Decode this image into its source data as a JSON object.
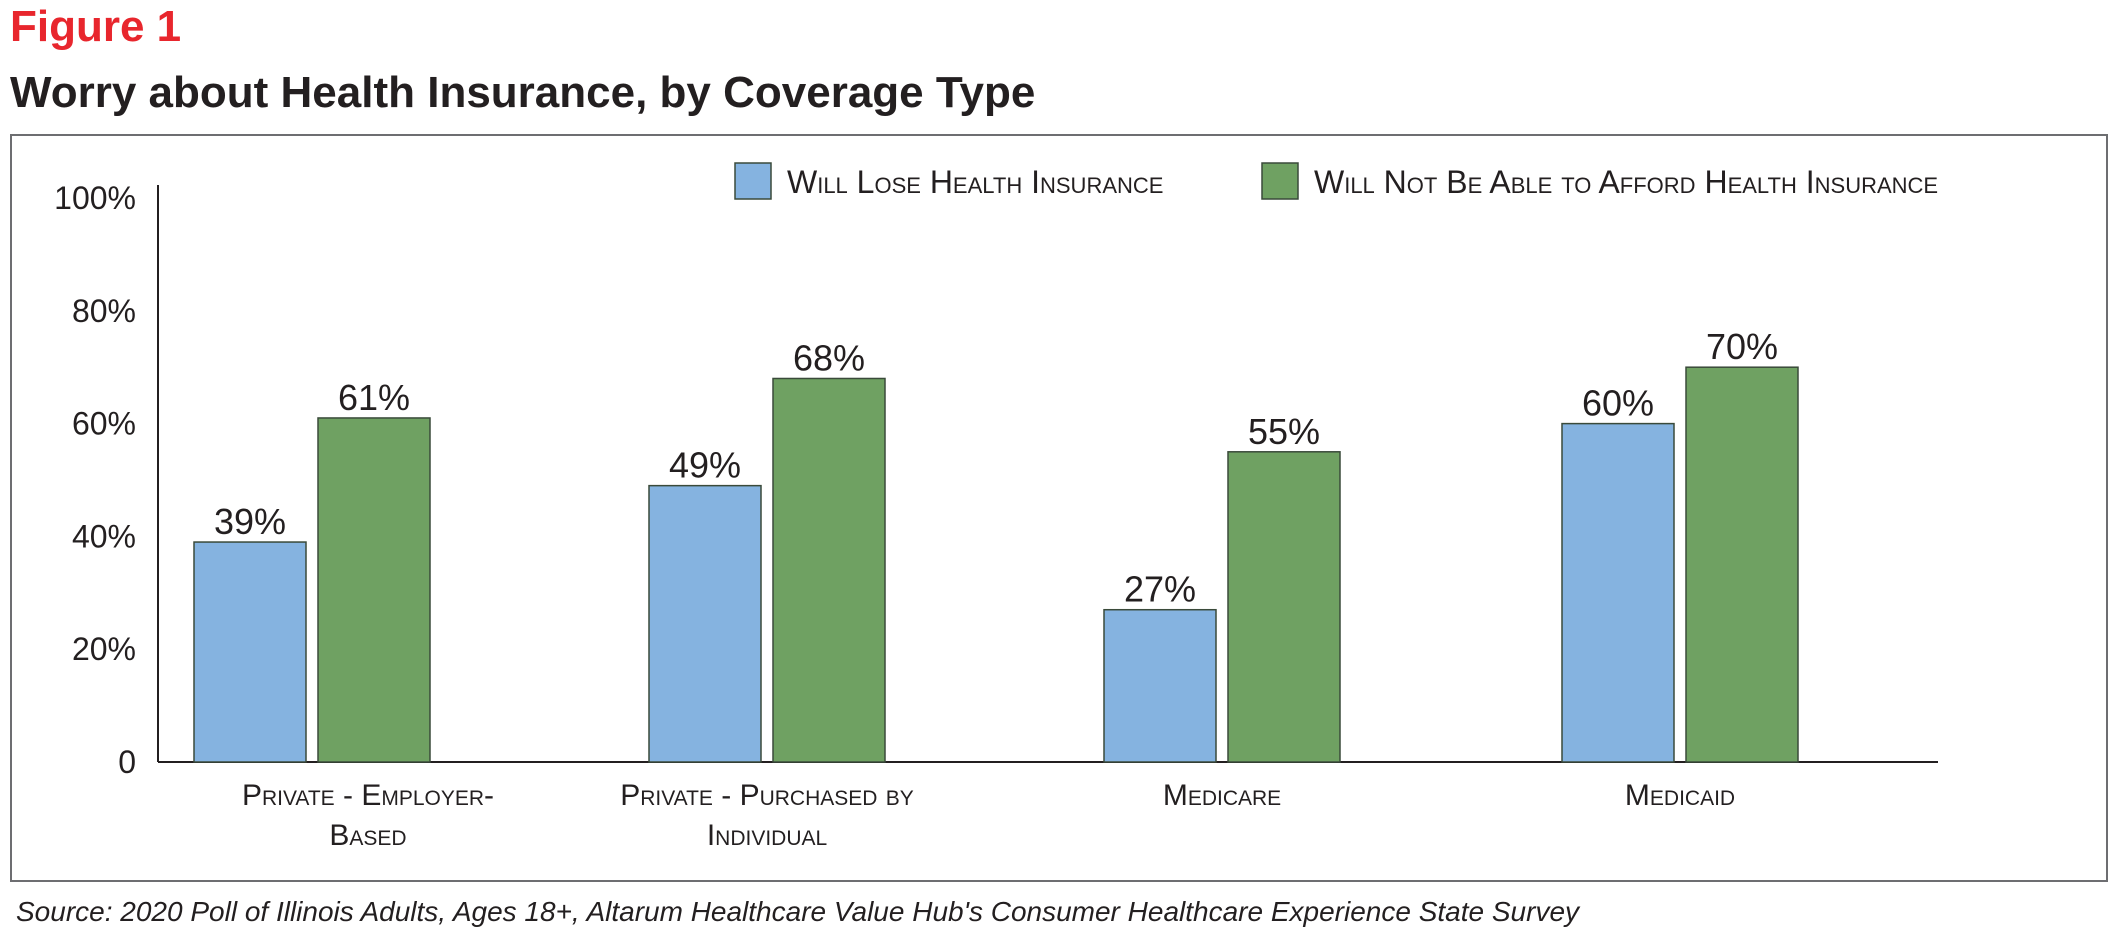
{
  "header": {
    "figure_label": "Figure 1",
    "title": "Worry about Health Insurance, by Coverage Type"
  },
  "source": "Source: 2020 Poll of Illinois Adults, Ages 18+, Altarum Healthcare Value Hub's Consumer Healthcare Experience State Survey",
  "chart_data": {
    "type": "bar",
    "title": "Worry about Health Insurance, by Coverage Type",
    "categories": [
      [
        "Private - Employer-",
        "Based"
      ],
      [
        "Private - Purchased by",
        "Individual"
      ],
      [
        "Medicare"
      ],
      [
        "Medicaid"
      ]
    ],
    "series": [
      {
        "name": "Will Lose Health Insurance",
        "color": "#85b3e0",
        "values": [
          39,
          49,
          27,
          60
        ],
        "labels": [
          "39%",
          "49%",
          "27%",
          "60%"
        ]
      },
      {
        "name": "Will Not Be Able to Afford Health Insurance",
        "color": "#6fa162",
        "values": [
          61,
          68,
          55,
          70
        ],
        "labels": [
          "61%",
          "68%",
          "55%",
          "70%"
        ]
      }
    ],
    "ylim": [
      0,
      100
    ],
    "yticks": [
      0,
      20,
      40,
      60,
      80,
      100
    ],
    "ytick_labels": [
      "0",
      "20%",
      "40%",
      "60%",
      "80%",
      "100%"
    ],
    "legend_position": "top-right",
    "grid": false
  }
}
